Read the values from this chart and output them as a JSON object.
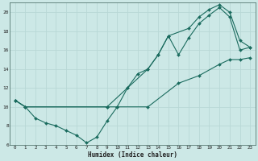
{
  "xlabel": "Humidex (Indice chaleur)",
  "bg_color": "#cce8e6",
  "line_color": "#1a6b5e",
  "grid_color": "#b8d8d6",
  "xlim": [
    -0.5,
    23.5
  ],
  "ylim": [
    6,
    21
  ],
  "xticks": [
    0,
    1,
    2,
    3,
    4,
    5,
    6,
    7,
    8,
    9,
    10,
    11,
    12,
    13,
    14,
    15,
    16,
    17,
    18,
    19,
    20,
    21,
    22,
    23
  ],
  "yticks": [
    6,
    8,
    10,
    12,
    14,
    16,
    18,
    20
  ],
  "series": [
    {
      "x": [
        0,
        1,
        2,
        3,
        4,
        5,
        6,
        7,
        8,
        9,
        10,
        11,
        12,
        13,
        14,
        15,
        16,
        17,
        18,
        19,
        20,
        21,
        22,
        23
      ],
      "y": [
        10.7,
        10.0,
        8.8,
        8.3,
        8.0,
        7.5,
        7.0,
        6.2,
        6.8,
        8.5,
        10.0,
        12.0,
        13.5,
        14.0,
        15.5,
        17.5,
        15.5,
        17.3,
        18.8,
        19.7,
        20.5,
        19.5,
        16.0,
        16.3
      ]
    },
    {
      "x": [
        0,
        1,
        9,
        10,
        13,
        16,
        18,
        20,
        21,
        22,
        23
      ],
      "y": [
        10.7,
        10.0,
        10.0,
        10.0,
        10.0,
        12.5,
        13.3,
        14.5,
        15.0,
        15.0,
        15.2
      ]
    },
    {
      "x": [
        0,
        1,
        9,
        11,
        13,
        14,
        15,
        17,
        18,
        19,
        20,
        21,
        22,
        23
      ],
      "y": [
        10.7,
        10.0,
        10.0,
        12.0,
        14.0,
        15.5,
        17.5,
        18.3,
        19.5,
        20.3,
        20.8,
        20.0,
        17.0,
        16.3
      ]
    }
  ]
}
